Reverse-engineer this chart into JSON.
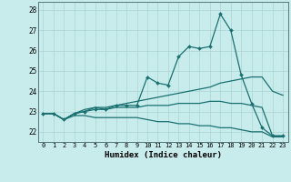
{
  "xlabel": "Humidex (Indice chaleur)",
  "background_color": "#c8ecec",
  "grid_color": "#aad4d4",
  "line_color": "#1a7070",
  "xlim": [
    -0.5,
    23.5
  ],
  "ylim": [
    21.5,
    28.4
  ],
  "xticks": [
    0,
    1,
    2,
    3,
    4,
    5,
    6,
    7,
    8,
    9,
    10,
    11,
    12,
    13,
    14,
    15,
    16,
    17,
    18,
    19,
    20,
    21,
    22,
    23
  ],
  "yticks": [
    22,
    23,
    24,
    25,
    26,
    27,
    28
  ],
  "series_with_markers": [
    [
      22.9,
      22.9,
      22.6,
      22.9,
      23.0,
      23.1,
      23.1,
      23.3,
      23.3,
      23.3,
      24.7,
      24.4,
      24.3,
      25.7,
      26.2,
      26.1,
      26.2,
      27.8,
      27.0,
      24.8,
      23.4,
      22.2,
      21.8,
      21.8
    ]
  ],
  "series_no_markers": [
    [
      22.9,
      22.9,
      22.6,
      22.9,
      23.0,
      23.2,
      23.2,
      23.3,
      23.4,
      23.5,
      23.6,
      23.7,
      23.8,
      23.9,
      24.0,
      24.1,
      24.2,
      24.4,
      24.5,
      24.6,
      24.7,
      24.7,
      24.0,
      23.8
    ],
    [
      22.9,
      22.9,
      22.6,
      22.9,
      23.1,
      23.2,
      23.1,
      23.2,
      23.2,
      23.2,
      23.3,
      23.3,
      23.3,
      23.4,
      23.4,
      23.4,
      23.5,
      23.5,
      23.4,
      23.4,
      23.3,
      23.2,
      21.8,
      21.8
    ],
    [
      22.9,
      22.9,
      22.6,
      22.8,
      22.8,
      22.7,
      22.7,
      22.7,
      22.7,
      22.7,
      22.6,
      22.5,
      22.5,
      22.4,
      22.4,
      22.3,
      22.3,
      22.2,
      22.2,
      22.1,
      22.0,
      22.0,
      21.75,
      21.75
    ]
  ]
}
